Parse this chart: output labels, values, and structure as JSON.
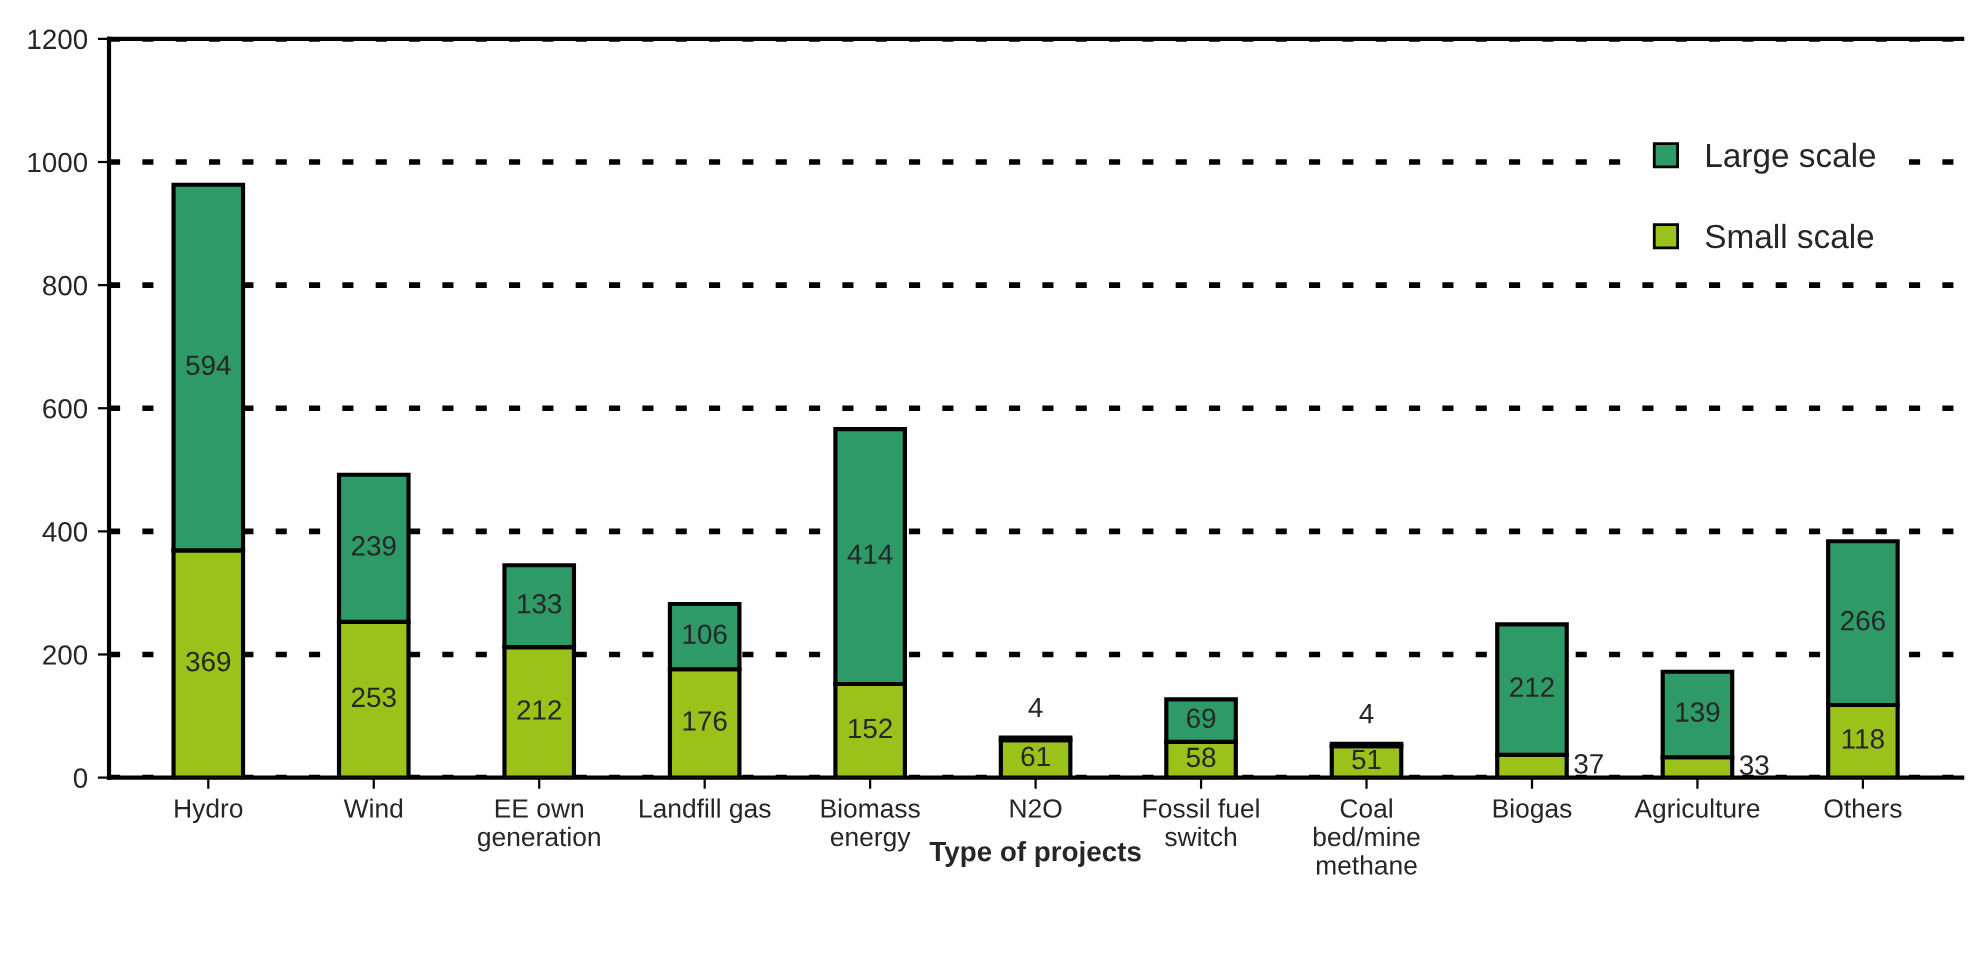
{
  "chart_data": {
    "type": "bar",
    "stacked": true,
    "xlabel": "Type of projects",
    "categories": [
      "Hydro",
      "Wind",
      "EE own\ngeneration",
      "Landfill gas",
      "Biomass\nenergy",
      "N2O",
      "Fossil fuel\nswitch",
      "Coal\nbed/mine\nmethane",
      "Biogas",
      "Agriculture",
      "Others"
    ],
    "series": [
      {
        "name": "Small scale",
        "color": "#9bc21a",
        "values": [
          369,
          253,
          212,
          176,
          152,
          61,
          58,
          51,
          37,
          33,
          118
        ]
      },
      {
        "name": "Large scale",
        "color": "#2e9a68",
        "values": [
          594,
          239,
          133,
          106,
          414,
          4,
          69,
          4,
          212,
          139,
          266
        ]
      }
    ],
    "ylim": [
      0,
      1200
    ],
    "yticks": [
      0,
      200,
      400,
      600,
      800,
      1000,
      1200
    ],
    "grid": "y",
    "legend": "top right",
    "data_labels": true
  }
}
